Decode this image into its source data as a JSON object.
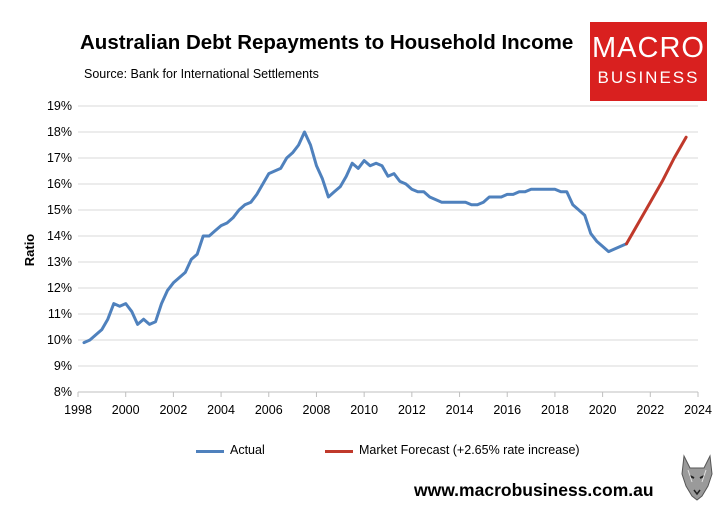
{
  "title": "Australian Debt Repayments to Household Income",
  "subtitle": "Source: Bank for International Settlements",
  "logo": {
    "line1": "MACRO",
    "line2": "BUSINESS"
  },
  "website": "www.macrobusiness.com.au",
  "colors": {
    "actual": "#4f81bd",
    "forecast": "#c0392b",
    "grid": "#d9d9d9",
    "logo_bg": "#d9201f"
  },
  "chart_data": {
    "type": "line",
    "title": "Australian Debt Repayments to Household Income",
    "subtitle": "Source: Bank for International Settlements",
    "xlabel": "",
    "ylabel": "Ratio",
    "xlim": [
      1998,
      2024
    ],
    "ylim": [
      8,
      19
    ],
    "x_ticks": [
      "1998",
      "2000",
      "2002",
      "2004",
      "2006",
      "2008",
      "2010",
      "2012",
      "2014",
      "2016",
      "2018",
      "2020",
      "2022",
      "2024"
    ],
    "y_ticks": [
      "8%",
      "9%",
      "10%",
      "11%",
      "12%",
      "13%",
      "14%",
      "15%",
      "16%",
      "17%",
      "18%",
      "19%"
    ],
    "y_tick_values": [
      8,
      9,
      10,
      11,
      12,
      13,
      14,
      15,
      16,
      17,
      18,
      19
    ],
    "grid": true,
    "legend_position": "bottom",
    "series": [
      {
        "name": "Actual",
        "color": "#4f81bd",
        "x": [
          1998.25,
          1998.5,
          1998.75,
          1999.0,
          1999.25,
          1999.5,
          1999.75,
          2000.0,
          2000.25,
          2000.5,
          2000.75,
          2001.0,
          2001.25,
          2001.5,
          2001.75,
          2002.0,
          2002.25,
          2002.5,
          2002.75,
          2003.0,
          2003.25,
          2003.5,
          2003.75,
          2004.0,
          2004.25,
          2004.5,
          2004.75,
          2005.0,
          2005.25,
          2005.5,
          2005.75,
          2006.0,
          2006.25,
          2006.5,
          2006.75,
          2007.0,
          2007.25,
          2007.5,
          2007.75,
          2008.0,
          2008.25,
          2008.5,
          2008.75,
          2009.0,
          2009.25,
          2009.5,
          2009.75,
          2010.0,
          2010.25,
          2010.5,
          2010.75,
          2011.0,
          2011.25,
          2011.5,
          2011.75,
          2012.0,
          2012.25,
          2012.5,
          2012.75,
          2013.0,
          2013.25,
          2013.5,
          2013.75,
          2014.0,
          2014.25,
          2014.5,
          2014.75,
          2015.0,
          2015.25,
          2015.5,
          2015.75,
          2016.0,
          2016.25,
          2016.5,
          2016.75,
          2017.0,
          2017.25,
          2017.5,
          2017.75,
          2018.0,
          2018.25,
          2018.5,
          2018.75,
          2019.0,
          2019.25,
          2019.5,
          2019.75,
          2020.0,
          2020.25,
          2020.5,
          2020.75,
          2021.0
        ],
        "y": [
          9.9,
          10.0,
          10.2,
          10.4,
          10.8,
          11.4,
          11.3,
          11.4,
          11.1,
          10.6,
          10.8,
          10.6,
          10.7,
          11.4,
          11.9,
          12.2,
          12.4,
          12.6,
          13.1,
          13.3,
          14.0,
          14.0,
          14.2,
          14.4,
          14.5,
          14.7,
          15.0,
          15.2,
          15.3,
          15.6,
          16.0,
          16.4,
          16.5,
          16.6,
          17.0,
          17.2,
          17.5,
          18.0,
          17.5,
          16.7,
          16.2,
          15.5,
          15.7,
          15.9,
          16.3,
          16.8,
          16.6,
          16.9,
          16.7,
          16.8,
          16.7,
          16.3,
          16.4,
          16.1,
          16.0,
          15.8,
          15.7,
          15.7,
          15.5,
          15.4,
          15.3,
          15.3,
          15.3,
          15.3,
          15.3,
          15.2,
          15.2,
          15.3,
          15.5,
          15.5,
          15.5,
          15.6,
          15.6,
          15.7,
          15.7,
          15.8,
          15.8,
          15.8,
          15.8,
          15.8,
          15.7,
          15.7,
          15.2,
          15.0,
          14.8,
          14.1,
          13.8,
          13.6,
          13.4,
          13.5,
          13.6,
          13.7
        ]
      },
      {
        "name": "Market Forecast (+2.65% rate increase)",
        "color": "#c0392b",
        "x": [
          2021.0,
          2021.5,
          2022.0,
          2022.5,
          2023.0,
          2023.5
        ],
        "y": [
          13.7,
          14.5,
          15.3,
          16.1,
          17.0,
          17.8
        ]
      }
    ]
  }
}
